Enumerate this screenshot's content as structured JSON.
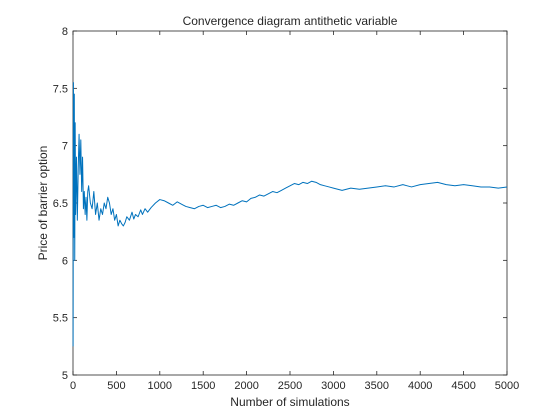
{
  "chart_data": {
    "type": "line",
    "title": "Convergence diagram antithetic variable",
    "xlabel": "Number of simulations",
    "ylabel": "Price of barrier option",
    "xlim": [
      0,
      5000
    ],
    "ylim": [
      5,
      8
    ],
    "xticks": [
      0,
      500,
      1000,
      1500,
      2000,
      2500,
      3000,
      3500,
      4000,
      4500,
      5000
    ],
    "yticks": [
      5,
      5.5,
      6,
      6.5,
      7,
      7.5,
      8
    ],
    "grid": false,
    "line_color": "#0072BD",
    "series": [
      {
        "x": [
          1,
          5,
          10,
          15,
          20,
          25,
          30,
          40,
          50,
          60,
          70,
          80,
          90,
          100,
          110,
          120,
          130,
          140,
          150,
          160,
          170,
          180,
          200,
          220,
          240,
          260,
          280,
          300,
          320,
          340,
          360,
          380,
          400,
          420,
          440,
          460,
          480,
          500,
          520,
          540,
          560,
          580,
          600,
          620,
          650,
          680,
          700,
          720,
          750,
          780,
          800,
          830,
          860,
          900,
          950,
          1000,
          1050,
          1100,
          1150,
          1200,
          1250,
          1300,
          1350,
          1400,
          1450,
          1500,
          1550,
          1600,
          1650,
          1700,
          1750,
          1800,
          1850,
          1900,
          1950,
          2000,
          2050,
          2100,
          2150,
          2200,
          2250,
          2300,
          2350,
          2400,
          2450,
          2500,
          2550,
          2600,
          2650,
          2700,
          2750,
          2800,
          2850,
          2900,
          2950,
          3000,
          3050,
          3100,
          3150,
          3200,
          3300,
          3400,
          3500,
          3600,
          3700,
          3800,
          3850,
          3900,
          4000,
          4100,
          4200,
          4250,
          4300,
          4400,
          4500,
          4600,
          4700,
          4800,
          4900,
          5000
        ],
        "y": [
          5.25,
          7.55,
          6.2,
          7.45,
          6.0,
          7.2,
          6.4,
          6.9,
          6.35,
          6.8,
          7.1,
          6.75,
          7.05,
          6.6,
          6.9,
          6.45,
          6.6,
          6.4,
          6.55,
          6.35,
          6.6,
          6.65,
          6.5,
          6.45,
          6.6,
          6.4,
          6.5,
          6.35,
          6.45,
          6.4,
          6.5,
          6.45,
          6.55,
          6.5,
          6.4,
          6.45,
          6.35,
          6.4,
          6.3,
          6.35,
          6.32,
          6.3,
          6.33,
          6.38,
          6.35,
          6.42,
          6.36,
          6.4,
          6.38,
          6.44,
          6.4,
          6.45,
          6.42,
          6.46,
          6.5,
          6.53,
          6.52,
          6.5,
          6.48,
          6.51,
          6.49,
          6.47,
          6.46,
          6.45,
          6.47,
          6.48,
          6.46,
          6.47,
          6.48,
          6.46,
          6.47,
          6.49,
          6.48,
          6.5,
          6.52,
          6.51,
          6.54,
          6.55,
          6.57,
          6.56,
          6.58,
          6.6,
          6.59,
          6.61,
          6.63,
          6.65,
          6.67,
          6.66,
          6.68,
          6.67,
          6.69,
          6.68,
          6.66,
          6.65,
          6.64,
          6.63,
          6.62,
          6.61,
          6.62,
          6.63,
          6.62,
          6.63,
          6.64,
          6.65,
          6.64,
          6.66,
          6.65,
          6.64,
          6.66,
          6.67,
          6.68,
          6.67,
          6.66,
          6.65,
          6.66,
          6.65,
          6.64,
          6.64,
          6.63,
          6.64
        ]
      }
    ]
  }
}
